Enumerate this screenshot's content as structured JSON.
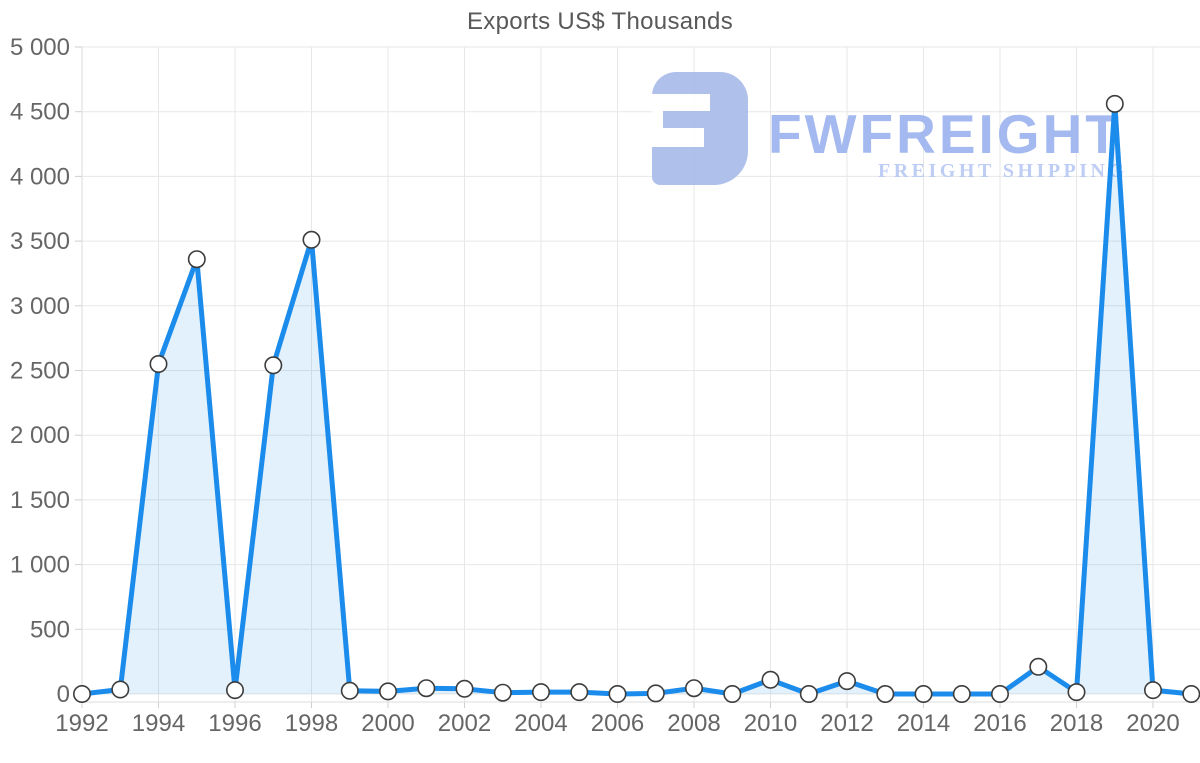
{
  "title": "Exports US$ Thousands",
  "watermark": {
    "brand": "FWFREIGHT",
    "tagline": "FREIGHT SHIPPING",
    "icon_color": "#a9bce9",
    "brand_color": "#9cb4ee",
    "tagline_color": "#b9c9f4"
  },
  "chart_data": {
    "type": "area",
    "title": "Exports US$ Thousands",
    "xlabel": "",
    "ylabel": "",
    "x": [
      1992,
      1993,
      1994,
      1995,
      1996,
      1997,
      1998,
      1999,
      2000,
      2001,
      2002,
      2003,
      2004,
      2005,
      2006,
      2007,
      2008,
      2009,
      2010,
      2011,
      2012,
      2013,
      2014,
      2015,
      2016,
      2017,
      2018,
      2019,
      2020,
      2021
    ],
    "series": [
      {
        "name": "Exports US$ Thousands",
        "values": [
          0,
          35,
          2550,
          3360,
          30,
          2540,
          3510,
          25,
          20,
          45,
          40,
          10,
          15,
          15,
          0,
          5,
          45,
          0,
          110,
          0,
          100,
          0,
          0,
          0,
          0,
          210,
          15,
          4560,
          30,
          0
        ]
      }
    ],
    "ylim": [
      0,
      5000
    ],
    "ytick_step": 500,
    "ytick_labels": [
      "0",
      "500",
      "1 000",
      "1 500",
      "2 000",
      "2 500",
      "3 000",
      "3 500",
      "4 000",
      "4 500",
      "5 000"
    ],
    "xtick_labels": [
      "1992",
      "1994",
      "1996",
      "1998",
      "2000",
      "2002",
      "2004",
      "2006",
      "2008",
      "2010",
      "2012",
      "2014",
      "2016",
      "2018",
      "2020"
    ],
    "grid": true,
    "legend": "none",
    "line_color": "#1b8ceb",
    "fill_color": "rgba(30,143,234,0.13)",
    "marker_fill": "#ffffff",
    "marker_stroke": "#3d3d3d",
    "grid_color": "#e7e7e7",
    "tick_color": "#cfcfcf",
    "label_color": "#666666"
  }
}
